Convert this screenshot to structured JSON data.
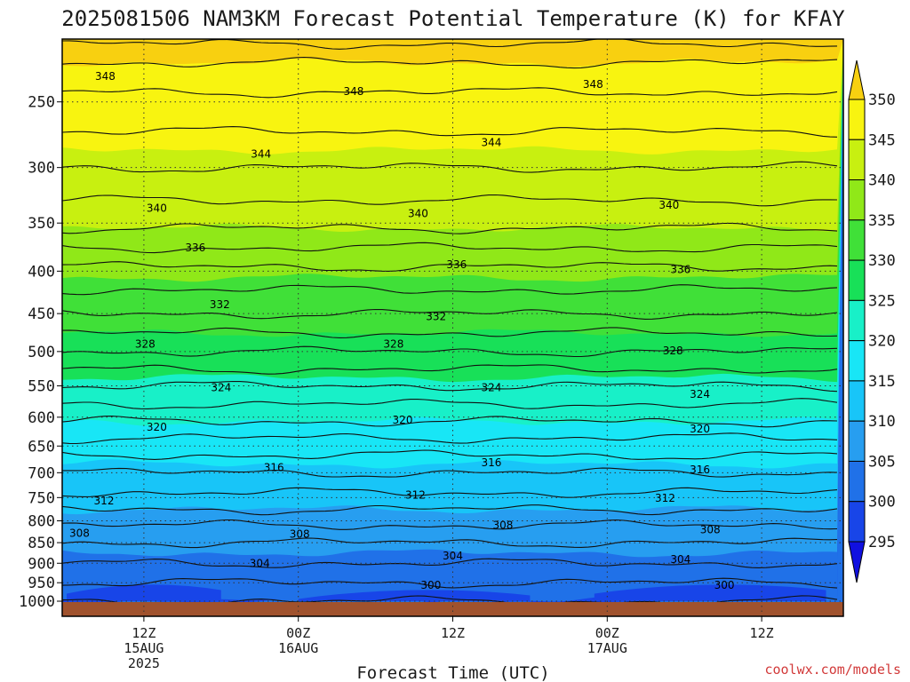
{
  "chart_data": {
    "type": "heatmap",
    "title": "2025081506 NAM3KM Forecast Potential Temperature (K) for KFAY",
    "xlabel": "Forecast Time (UTC)",
    "ylabel": "",
    "credit": "coolwx.com/models",
    "y_axis": {
      "scale": "log-pressure",
      "range": [
        200,
        1000
      ],
      "ticks": [
        250,
        300,
        350,
        400,
        450,
        500,
        550,
        600,
        650,
        700,
        750,
        800,
        850,
        900,
        950,
        1000
      ],
      "labels": [
        "250",
        "300",
        "350",
        "400",
        "450",
        "500",
        "550",
        "600",
        "650",
        "700",
        "750",
        "800",
        "850",
        "900",
        "950",
        "1000"
      ]
    },
    "x_axis": {
      "ticks": [
        {
          "l1": "12Z",
          "l2": "15AUG",
          "l3": "2025"
        },
        {
          "l1": "00Z",
          "l2": "16AUG",
          "l3": ""
        },
        {
          "l1": "12Z",
          "l2": "",
          "l3": ""
        },
        {
          "l1": "00Z",
          "l2": "17AUG",
          "l3": ""
        },
        {
          "l1": "12Z",
          "l2": "",
          "l3": ""
        }
      ],
      "tick_hours": [
        6,
        18,
        30,
        42,
        54
      ],
      "range_hours": [
        0,
        60
      ]
    },
    "grid": true,
    "colorbar": {
      "levels": [
        295,
        300,
        305,
        310,
        315,
        320,
        325,
        330,
        335,
        340,
        345,
        350
      ],
      "labels": [
        "295",
        "300",
        "305",
        "310",
        "315",
        "320",
        "325",
        "330",
        "335",
        "340",
        "345",
        "350"
      ],
      "colors": [
        "#1010e0",
        "#1845e8",
        "#2071e8",
        "#279ef0",
        "#18c5f8",
        "#18e6f6",
        "#18f0c8",
        "#18e058",
        "#40e038",
        "#90e818",
        "#c8f010",
        "#f8f410",
        "#f8d010"
      ]
    },
    "profile": [
      {
        "p": 210,
        "theta": 352.5
      },
      {
        "p": 230,
        "theta": 349.0
      },
      {
        "p": 250,
        "theta": 347.5
      },
      {
        "p": 300,
        "theta": 344.0
      },
      {
        "p": 350,
        "theta": 340.5
      },
      {
        "p": 400,
        "theta": 335.5
      },
      {
        "p": 450,
        "theta": 332.0
      },
      {
        "p": 500,
        "theta": 328.0
      },
      {
        "p": 550,
        "theta": 324.0
      },
      {
        "p": 600,
        "theta": 320.5
      },
      {
        "p": 650,
        "theta": 317.0
      },
      {
        "p": 700,
        "theta": 314.0
      },
      {
        "p": 750,
        "theta": 311.5
      },
      {
        "p": 800,
        "theta": 308.5
      },
      {
        "p": 850,
        "theta": 306.0
      },
      {
        "p": 900,
        "theta": 304.0
      },
      {
        "p": 950,
        "theta": 302.0
      },
      {
        "p": 1000,
        "theta": 300.0
      }
    ],
    "contour_interval": 2,
    "contour_labels": [
      {
        "value": "348",
        "hour": 3.0,
        "p": 233
      },
      {
        "value": "348",
        "hour": 22.3,
        "p": 243
      },
      {
        "value": "348",
        "hour": 40.9,
        "p": 238
      },
      {
        "value": "344",
        "hour": 15.1,
        "p": 289
      },
      {
        "value": "344",
        "hour": 33.0,
        "p": 280
      },
      {
        "value": "340",
        "hour": 7.0,
        "p": 336
      },
      {
        "value": "340",
        "hour": 27.3,
        "p": 341
      },
      {
        "value": "340",
        "hour": 46.8,
        "p": 333
      },
      {
        "value": "336",
        "hour": 10.0,
        "p": 375
      },
      {
        "value": "336",
        "hour": 30.3,
        "p": 393
      },
      {
        "value": "336",
        "hour": 47.7,
        "p": 398
      },
      {
        "value": "332",
        "hour": 11.9,
        "p": 439
      },
      {
        "value": "332",
        "hour": 28.7,
        "p": 454
      },
      {
        "value": "328",
        "hour": 6.1,
        "p": 490
      },
      {
        "value": "328",
        "hour": 25.4,
        "p": 490
      },
      {
        "value": "328",
        "hour": 47.1,
        "p": 499
      },
      {
        "value": "324",
        "hour": 12.0,
        "p": 553
      },
      {
        "value": "324",
        "hour": 33.0,
        "p": 553
      },
      {
        "value": "324",
        "hour": 49.2,
        "p": 563
      },
      {
        "value": "320",
        "hour": 7.0,
        "p": 617
      },
      {
        "value": "320",
        "hour": 26.1,
        "p": 605
      },
      {
        "value": "320",
        "hour": 49.2,
        "p": 620
      },
      {
        "value": "316",
        "hour": 16.1,
        "p": 690
      },
      {
        "value": "316",
        "hour": 33.0,
        "p": 681
      },
      {
        "value": "316",
        "hour": 49.2,
        "p": 694
      },
      {
        "value": "312",
        "hour": 2.9,
        "p": 757
      },
      {
        "value": "312",
        "hour": 27.1,
        "p": 745
      },
      {
        "value": "312",
        "hour": 46.5,
        "p": 751
      },
      {
        "value": "308",
        "hour": 1.0,
        "p": 828
      },
      {
        "value": "308",
        "hour": 18.1,
        "p": 830
      },
      {
        "value": "308",
        "hour": 33.9,
        "p": 810
      },
      {
        "value": "308",
        "hour": 50.0,
        "p": 820
      },
      {
        "value": "304",
        "hour": 15.0,
        "p": 900
      },
      {
        "value": "304",
        "hour": 30.0,
        "p": 882
      },
      {
        "value": "304",
        "hour": 47.7,
        "p": 891
      },
      {
        "value": "300",
        "hour": 28.3,
        "p": 957
      },
      {
        "value": "300",
        "hour": 51.1,
        "p": 957
      }
    ]
  }
}
